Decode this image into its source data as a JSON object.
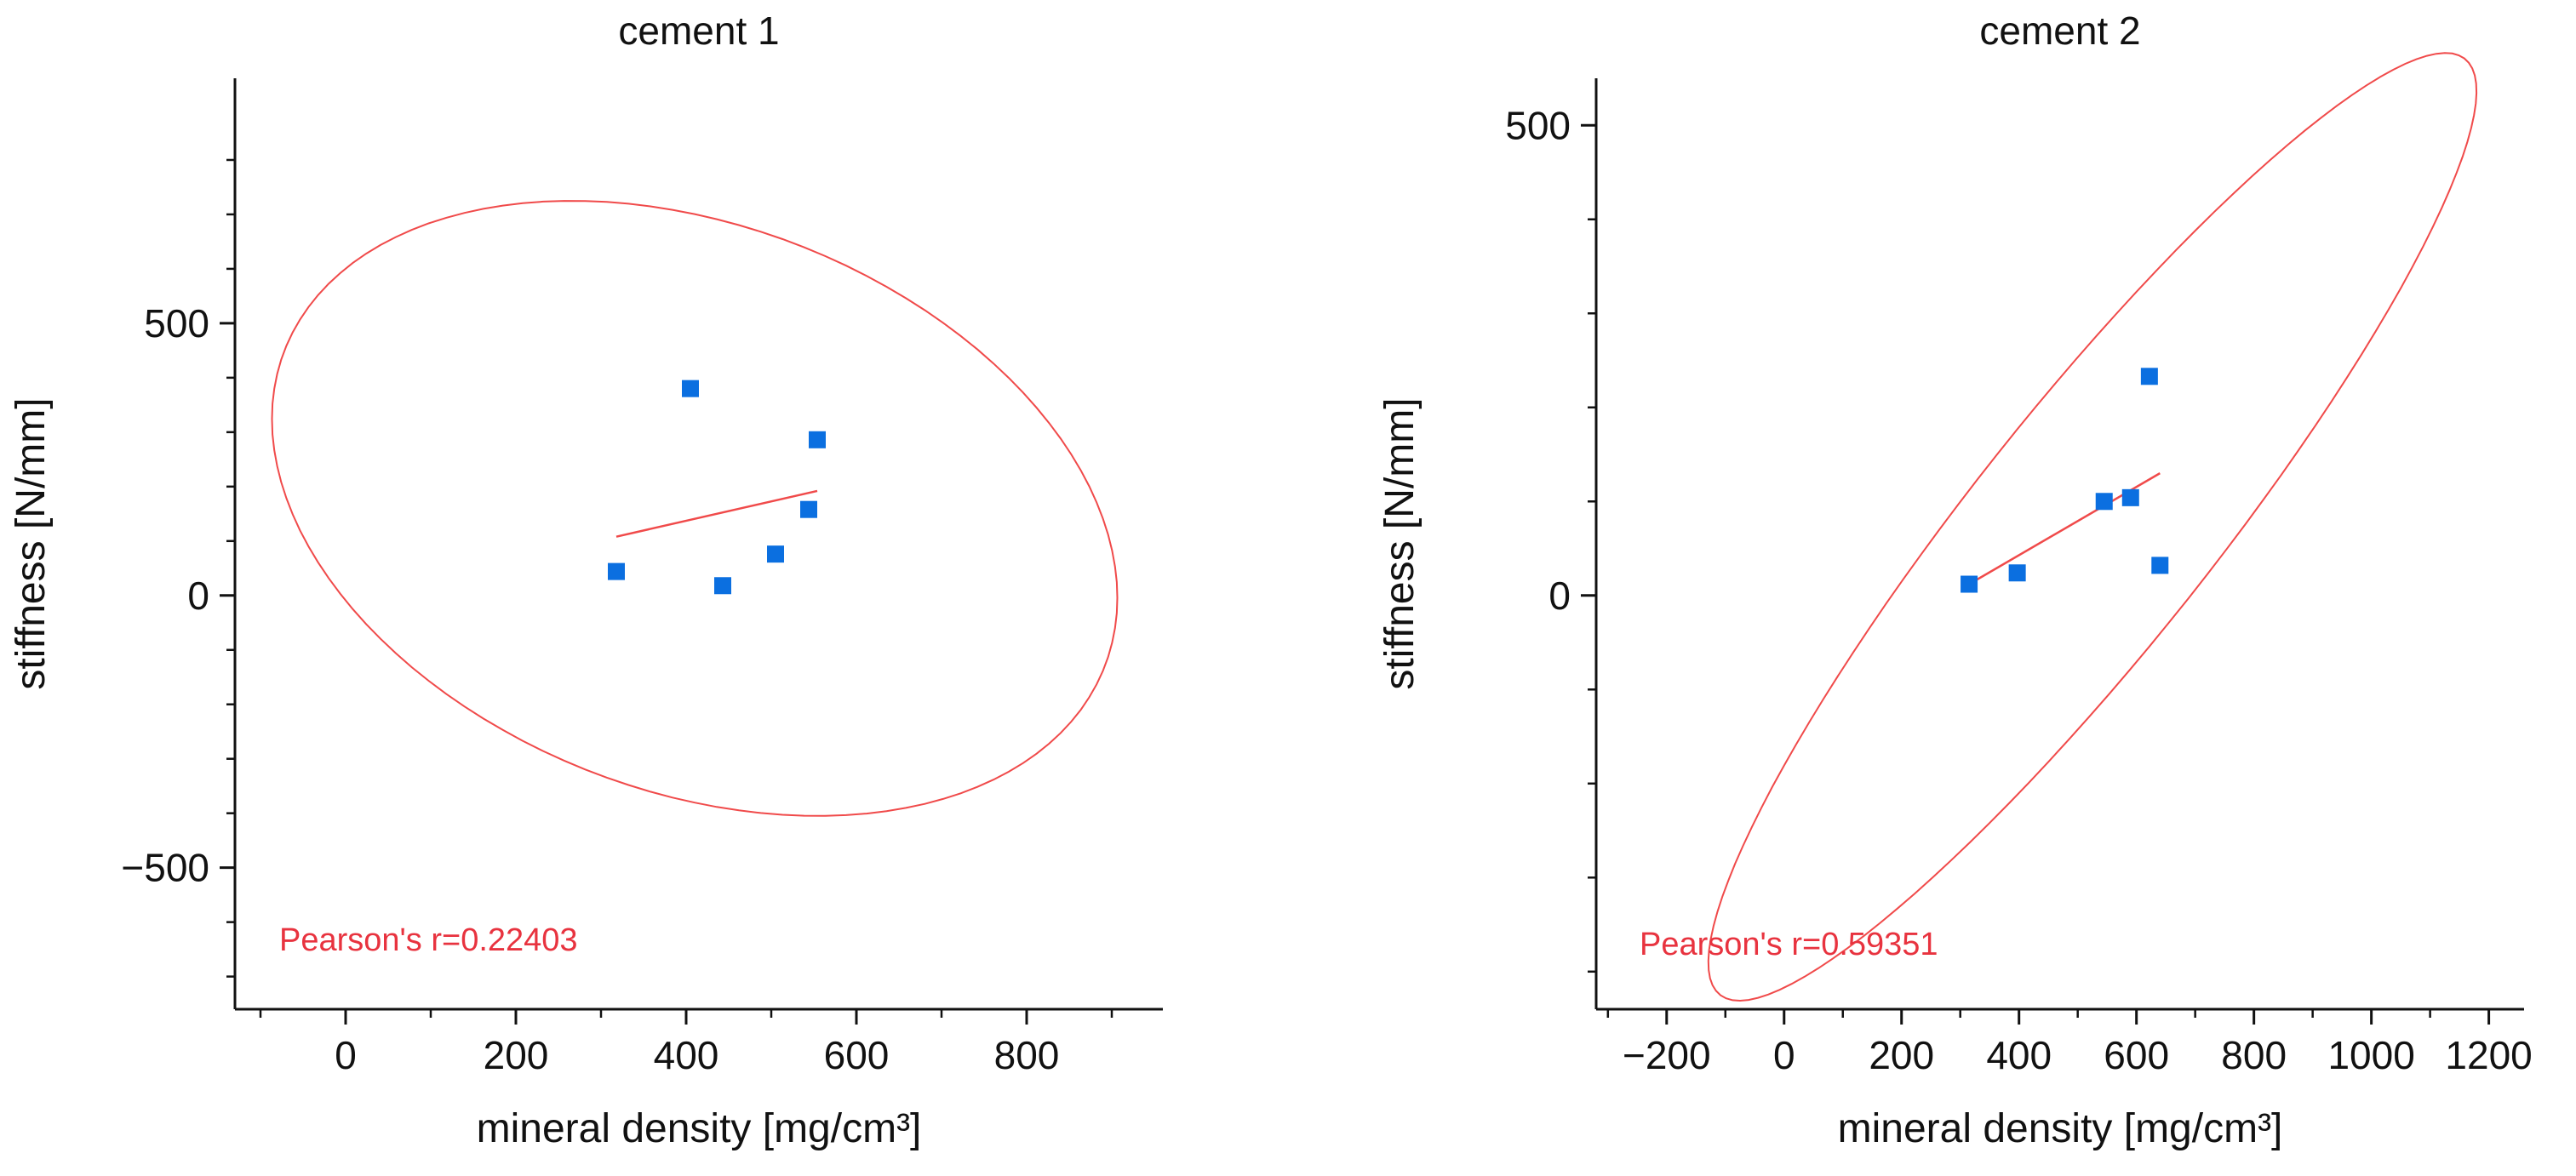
{
  "chart_data": [
    {
      "type": "scatter",
      "title": "cement 1",
      "xlabel": "mineral density [mg/cm³]",
      "ylabel": "stiffness [N/mm]",
      "xlim": [
        -130,
        960
      ],
      "ylim": [
        -760,
        950
      ],
      "x_ticks": [
        0,
        200,
        400,
        600,
        800
      ],
      "x_tick_labels": [
        "0",
        "200",
        "400",
        "600",
        "800"
      ],
      "x_minor_ticks": [
        -100,
        100,
        300,
        500,
        700,
        900
      ],
      "y_ticks": [
        -500,
        0,
        500
      ],
      "y_tick_labels": [
        "−500",
        "0",
        "500"
      ],
      "y_minor_ticks": [
        -700,
        -600,
        -400,
        -300,
        -200,
        -100,
        100,
        200,
        300,
        400,
        600,
        700,
        800
      ],
      "series": [
        {
          "name": "data",
          "marker": "square",
          "color": "#0b6fe0",
          "points": [
            {
              "x": 318,
              "y": 44
            },
            {
              "x": 405,
              "y": 380
            },
            {
              "x": 443,
              "y": 18
            },
            {
              "x": 505,
              "y": 76
            },
            {
              "x": 544,
              "y": 158
            },
            {
              "x": 554,
              "y": 286
            }
          ]
        }
      ],
      "fit_line": {
        "color": "#f04a4a",
        "x": [
          318,
          554
        ],
        "y": [
          108,
          192
        ]
      },
      "ellipse": {
        "color": "#f04a4a",
        "cx": 410,
        "cy": 160,
        "rx": 440,
        "ry": 610,
        "angle_deg": 33
      },
      "annotation": {
        "text": "Pearson's r=0.22403",
        "color": "#e8333f",
        "position": "bottom-left"
      }
    },
    {
      "type": "scatter",
      "title": "cement 2",
      "xlabel": "mineral density [mg/cm³]",
      "ylabel": "stiffness [N/mm]",
      "xlim": [
        -320,
        1260
      ],
      "ylim": [
        -440,
        550
      ],
      "x_ticks": [
        -200,
        0,
        200,
        400,
        600,
        800,
        1000,
        1200
      ],
      "x_tick_labels": [
        "−200",
        "0",
        "200",
        "400",
        "600",
        "800",
        "1000",
        "1200"
      ],
      "x_minor_ticks": [
        -300,
        -100,
        100,
        300,
        500,
        700,
        900,
        1100
      ],
      "y_ticks": [
        0,
        500
      ],
      "y_tick_labels": [
        "0",
        "500"
      ],
      "y_minor_ticks": [
        -400,
        -300,
        -200,
        -100,
        100,
        200,
        300,
        400
      ],
      "series": [
        {
          "name": "data",
          "marker": "square",
          "color": "#0b6fe0",
          "points": [
            {
              "x": 315,
              "y": 12
            },
            {
              "x": 397,
              "y": 24
            },
            {
              "x": 545,
              "y": 100
            },
            {
              "x": 590,
              "y": 104
            },
            {
              "x": 622,
              "y": 233
            },
            {
              "x": 640,
              "y": 32
            }
          ]
        }
      ],
      "fit_line": {
        "color": "#f04a4a",
        "x": [
          315,
          640
        ],
        "y": [
          12,
          130
        ]
      },
      "ellipse": {
        "color": "#f04a4a",
        "cx": 525,
        "cy": 73,
        "rx": 810,
        "ry": 160,
        "angle_deg": 37
      },
      "annotation": {
        "text": "Pearson's r=0.59351",
        "color": "#e8333f",
        "position": "bottom-left"
      }
    }
  ]
}
